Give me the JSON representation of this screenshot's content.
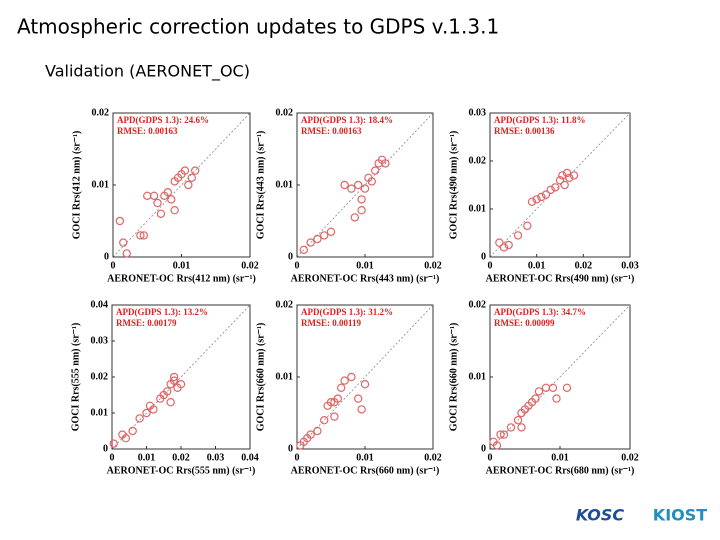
{
  "title": "Atmospheric correction updates to GDPS v.1.3.1",
  "subtitle": "Validation (AERONET_OC)",
  "logos": [
    "KOSC",
    "KIOST"
  ],
  "chart_data": [
    {
      "type": "scatter",
      "color": "#e06666",
      "annotations": [
        "APD(GDPS 1.3): 24.6%",
        "RMSE: 0.00163"
      ],
      "xlabel": "AERONET-OC Rrs(412 nm) (sr⁻¹)",
      "ylabel": "GOCI Rrs(412 nm) (sr⁻¹)",
      "xlim": [
        0,
        0.02
      ],
      "ylim": [
        0,
        0.02
      ],
      "xticks": [
        0,
        0.01,
        0.02
      ],
      "yticks": [
        0,
        0.01,
        0.02
      ],
      "x": [
        0.001,
        0.0015,
        0.002,
        0.004,
        0.0045,
        0.005,
        0.006,
        0.0065,
        0.007,
        0.008,
        0.0085,
        0.009,
        0.0095,
        0.01,
        0.0105,
        0.011,
        0.0115,
        0.012,
        0.009,
        0.0075
      ],
      "values": [
        0.005,
        0.002,
        0.0005,
        0.003,
        0.003,
        0.0085,
        0.0085,
        0.0075,
        0.006,
        0.009,
        0.008,
        0.0105,
        0.011,
        0.0115,
        0.012,
        0.01,
        0.011,
        0.012,
        0.0065,
        0.0085
      ]
    },
    {
      "type": "scatter",
      "color": "#e06666",
      "annotations": [
        "APD(GDPS 1.3): 18.4%",
        "RMSE: 0.00163"
      ],
      "xlabel": "AERONET-OC Rrs(443 nm) (sr⁻¹)",
      "ylabel": "GOCI Rrs(443 nm) (sr⁻¹)",
      "xlim": [
        0,
        0.02
      ],
      "ylim": [
        0,
        0.02
      ],
      "xticks": [
        0,
        0.01,
        0.02
      ],
      "yticks": [
        0,
        0.01,
        0.02
      ],
      "x": [
        0.001,
        0.002,
        0.003,
        0.004,
        0.005,
        0.007,
        0.008,
        0.009,
        0.0095,
        0.01,
        0.011,
        0.0115,
        0.012,
        0.0125,
        0.013,
        0.0095,
        0.0085,
        0.0105
      ],
      "values": [
        0.001,
        0.002,
        0.0025,
        0.003,
        0.0035,
        0.01,
        0.0095,
        0.01,
        0.0065,
        0.0095,
        0.0105,
        0.012,
        0.013,
        0.0135,
        0.013,
        0.008,
        0.0055,
        0.011
      ]
    },
    {
      "type": "scatter",
      "color": "#e06666",
      "annotations": [
        "APD(GDPS 1.3): 11.8%",
        "RMSE: 0.00136"
      ],
      "xlabel": "AERONET-OC Rrs(490 nm) (sr⁻¹)",
      "ylabel": "GOCI Rrs(490 nm) (sr⁻¹)",
      "xlim": [
        0,
        0.03
      ],
      "ylim": [
        0,
        0.03
      ],
      "xticks": [
        0,
        0.01,
        0.02,
        0.03
      ],
      "yticks": [
        0,
        0.01,
        0.02,
        0.03
      ],
      "x": [
        0.002,
        0.003,
        0.004,
        0.006,
        0.008,
        0.009,
        0.01,
        0.011,
        0.012,
        0.013,
        0.014,
        0.015,
        0.016,
        0.017,
        0.0165,
        0.0155,
        0.018
      ],
      "values": [
        0.003,
        0.002,
        0.0025,
        0.0045,
        0.0065,
        0.0115,
        0.012,
        0.0125,
        0.013,
        0.014,
        0.0145,
        0.016,
        0.015,
        0.0165,
        0.0175,
        0.017,
        0.017
      ]
    },
    {
      "type": "scatter",
      "color": "#e06666",
      "annotations": [
        "APD(GDPS 1.3): 13.2%",
        "RMSE: 0.00179"
      ],
      "xlabel": "AERONET-OC Rrs(555 nm) (sr⁻¹)",
      "ylabel": "GOCI Rrs(555 nm) (sr⁻¹)",
      "xlim": [
        0,
        0.04
      ],
      "ylim": [
        0,
        0.04
      ],
      "xticks": [
        0,
        0.01,
        0.02,
        0.03,
        0.04
      ],
      "yticks": [
        0,
        0.01,
        0.02,
        0.03,
        0.04
      ],
      "x": [
        0.0005,
        0.003,
        0.004,
        0.006,
        0.008,
        0.01,
        0.011,
        0.012,
        0.014,
        0.015,
        0.016,
        0.017,
        0.018,
        0.019,
        0.02,
        0.018,
        0.017
      ],
      "values": [
        0.0015,
        0.004,
        0.003,
        0.005,
        0.0085,
        0.01,
        0.012,
        0.011,
        0.014,
        0.015,
        0.016,
        0.018,
        0.02,
        0.017,
        0.018,
        0.019,
        0.013
      ]
    },
    {
      "type": "scatter",
      "color": "#e06666",
      "annotations": [
        "APD(GDPS 1.3): 31.2%",
        "RMSE: 0.00119"
      ],
      "xlabel": "AERONET-OC Rrs(660 nm) (sr⁻¹)",
      "ylabel": "GOCI Rrs(660 nm) (sr⁻¹)",
      "xlim": [
        0,
        0.02
      ],
      "ylim": [
        0,
        0.02
      ],
      "xticks": [
        0,
        0.01,
        0.02
      ],
      "yticks": [
        0,
        0.01,
        0.02
      ],
      "x": [
        0.0005,
        0.001,
        0.0015,
        0.002,
        0.003,
        0.004,
        0.0045,
        0.005,
        0.0055,
        0.006,
        0.0065,
        0.007,
        0.008,
        0.009,
        0.0095,
        0.01,
        0.0055
      ],
      "values": [
        0.0005,
        0.001,
        0.0015,
        0.002,
        0.0025,
        0.004,
        0.006,
        0.0065,
        0.0065,
        0.007,
        0.0085,
        0.0095,
        0.01,
        0.007,
        0.0055,
        0.009,
        0.0045
      ]
    },
    {
      "type": "scatter",
      "color": "#e06666",
      "annotations": [
        "APD(GDPS 1.3): 34.7%",
        "RMSE: 0.00099"
      ],
      "xlabel": "AERONET-OC Rrs(680 nm) (sr⁻¹)",
      "ylabel": "GOCI Rrs(660 nm) (sr⁻¹)",
      "xlim": [
        0,
        0.02
      ],
      "ylim": [
        0,
        0.02
      ],
      "xticks": [
        0,
        0.01,
        0.02
      ],
      "yticks": [
        0,
        0.01,
        0.02
      ],
      "x": [
        0.0005,
        0.001,
        0.0015,
        0.002,
        0.003,
        0.004,
        0.0045,
        0.005,
        0.0055,
        0.006,
        0.0065,
        0.007,
        0.008,
        0.009,
        0.0095,
        0.011,
        0.0045
      ],
      "values": [
        0.001,
        0.0005,
        0.002,
        0.002,
        0.003,
        0.004,
        0.005,
        0.0055,
        0.006,
        0.0065,
        0.007,
        0.008,
        0.0085,
        0.0085,
        0.007,
        0.0085,
        0.003
      ]
    }
  ]
}
